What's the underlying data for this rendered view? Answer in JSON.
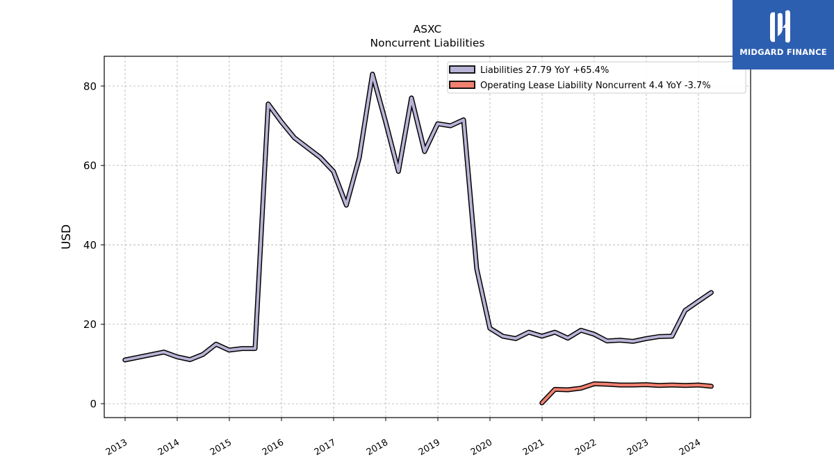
{
  "brand": {
    "name": "MIDGARD FINANCE",
    "color": "#2d5fb0"
  },
  "chart_data": {
    "type": "line",
    "title": "ASXC",
    "subtitle": "Noncurrent  Liabilities",
    "ylabel": "USD",
    "xlabel": "",
    "ylim": [
      -3.5,
      87.5
    ],
    "xlim": [
      2012.6,
      2025.0
    ],
    "yticks": [
      0,
      20,
      40,
      60,
      80
    ],
    "xticks": [
      "2013",
      "2014",
      "2015",
      "2016",
      "2017",
      "2018",
      "2019",
      "2020",
      "2021",
      "2022",
      "2023",
      "2024"
    ],
    "grid": true,
    "legend_position": "top-right",
    "series": [
      {
        "name": "Liabilities  27.79 YoY +65.4%",
        "color": "#b8b4d6",
        "x": [
          "2012-12-31",
          "2013-09-30",
          "2013-12-31",
          "2014-03-31",
          "2014-06-30",
          "2014-09-30",
          "2014-12-31",
          "2015-03-31",
          "2015-06-30",
          "2015-09-30",
          "2015-12-31",
          "2016-03-31",
          "2016-06-30",
          "2016-09-30",
          "2016-12-31",
          "2017-03-31",
          "2017-06-30",
          "2017-09-30",
          "2017-12-31",
          "2018-03-31",
          "2018-06-30",
          "2018-09-30",
          "2018-12-31",
          "2019-03-31",
          "2019-06-30",
          "2019-09-30",
          "2019-12-31",
          "2020-03-31",
          "2020-06-30",
          "2020-09-30",
          "2020-12-31",
          "2021-03-31",
          "2021-06-30",
          "2021-09-30",
          "2021-12-31",
          "2022-03-31",
          "2022-06-30",
          "2022-09-30",
          "2022-12-31",
          "2023-03-31",
          "2023-06-30",
          "2023-09-30",
          "2023-12-31",
          "2024-03-31"
        ],
        "values": [
          11,
          13,
          11.8,
          11.1,
          12.4,
          15,
          13.5,
          13.9,
          13.9,
          75.5,
          71,
          67,
          64.5,
          62,
          58.5,
          50,
          62,
          83,
          71,
          58.5,
          77,
          63.5,
          70.5,
          70,
          71.5,
          34,
          19,
          17,
          16.4,
          18,
          17,
          18,
          16.5,
          18.5,
          17.5,
          15.8,
          16,
          15.7,
          16.4,
          16.9,
          17,
          23.5,
          25.8,
          28
        ]
      },
      {
        "name": "Operating Lease Liability Noncurrent  4.4 YoY -3.7%",
        "color": "#f08070",
        "x": [
          "2020-12-31",
          "2021-03-31",
          "2021-06-30",
          "2021-09-30",
          "2021-12-31",
          "2022-03-31",
          "2022-06-30",
          "2022-09-30",
          "2022-12-31",
          "2023-03-31",
          "2023-06-30",
          "2023-09-30",
          "2023-12-31",
          "2024-03-31"
        ],
        "values": [
          0.2,
          3.6,
          3.5,
          3.9,
          5,
          4.9,
          4.7,
          4.7,
          4.8,
          4.6,
          4.7,
          4.6,
          4.7,
          4.4
        ]
      }
    ]
  }
}
